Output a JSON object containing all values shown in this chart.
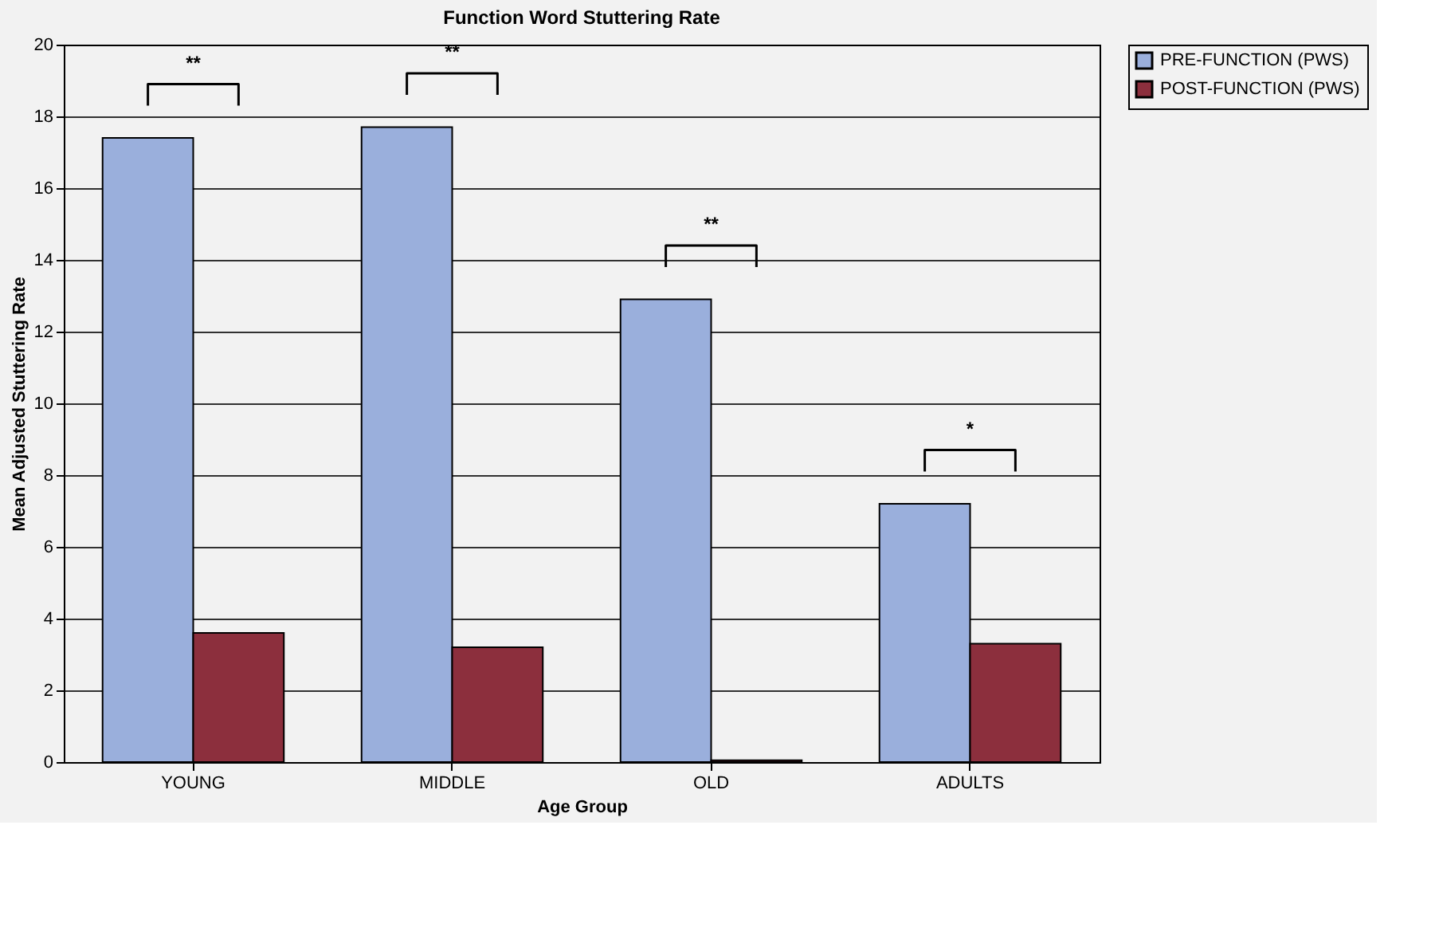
{
  "chart_data": {
    "type": "bar",
    "title": "Function Word Stuttering Rate",
    "xlabel": "Age Group",
    "ylabel": "Mean Adjusted Stuttering Rate",
    "categories": [
      "YOUNG",
      "MIDDLE",
      "OLD",
      "ADULTS"
    ],
    "series": [
      {
        "name": "PRE-FUNCTION (PWS)",
        "color": "#9aafdc",
        "values": [
          17.4,
          17.7,
          12.9,
          7.2
        ]
      },
      {
        "name": "POST-FUNCTION (PWS)",
        "color": "#8c2f3d",
        "values": [
          3.6,
          3.2,
          0.05,
          3.3
        ]
      }
    ],
    "ylim": [
      0,
      20
    ],
    "yticks": [
      0,
      2,
      4,
      6,
      8,
      10,
      12,
      14,
      16,
      18,
      20
    ],
    "grid": "y",
    "legend": "right",
    "annotations": [
      "**",
      "**",
      "**",
      "*"
    ]
  }
}
